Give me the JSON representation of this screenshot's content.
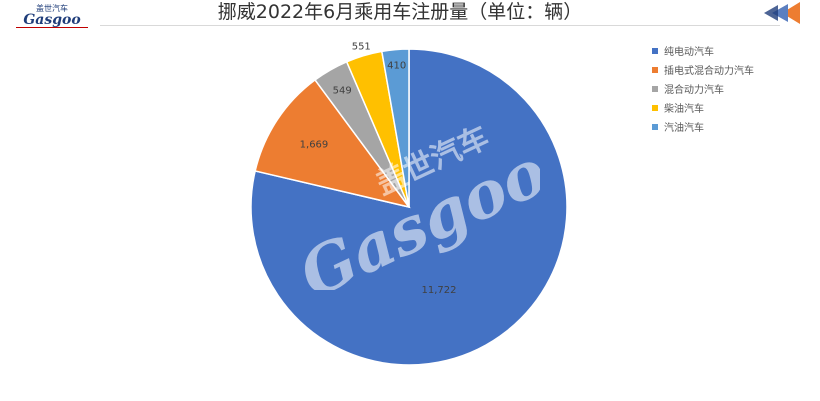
{
  "header": {
    "logo_text": "Gasgoo",
    "logo_cn": "盖世汽车",
    "title": "挪威2022年6月乘用车注册量（单位：辆）"
  },
  "colors": {
    "bev": "#4472c4",
    "phev": "#ed7d31",
    "hybrid": "#a5a5a5",
    "diesel": "#ffc000",
    "petrol": "#5b9bd5"
  },
  "chart_data": {
    "type": "pie",
    "title": "挪威2022年6月乘用车注册量（单位：辆）",
    "categories": [
      "纯电动汽车",
      "插电式混合动力汽车",
      "混合动力汽车",
      "柴油汽车",
      "汽油汽车"
    ],
    "values": [
      11722,
      1669,
      549,
      551,
      410
    ],
    "labels": [
      "11,722",
      "1,669",
      "549",
      "551",
      "410"
    ],
    "start_angle_deg": 0,
    "direction": "clockwise",
    "legend_position": "right"
  },
  "watermark": {
    "text": "Gasgoo",
    "cn": "盖世汽车"
  }
}
